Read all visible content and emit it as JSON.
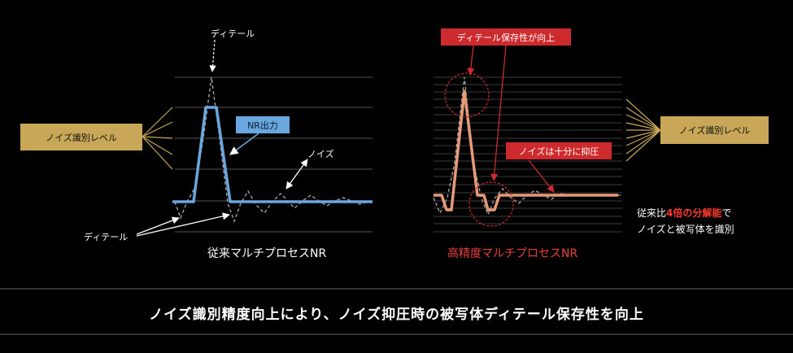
{
  "left": {
    "detail_top": "ディテール",
    "nr_output": "NR出力",
    "noise": "ノイズ",
    "detail_bottom": "ディテール",
    "noise_level": "ノイズ識別レベル",
    "title": "従来マルチプロセスNR"
  },
  "right": {
    "detail_preserve": "ディテール保存性が向上",
    "noise_suppressed": "ノイズは十分に抑圧",
    "noise_level": "ノイズ識別レベル",
    "title": "高精度マルチプロセスNR",
    "note_prefix": "従来比",
    "note_highlight": "4倍の分解能",
    "note_suffix": "で",
    "note_line2": "ノイズと被写体を識別"
  },
  "footer": "ノイズ識別精度向上により、ノイズ抑圧時の被写体ディテール保存性を向上",
  "colors": {
    "gold": "#c8a758",
    "blue": "#6aa7df",
    "red": "#cc2a2c",
    "salmon": "#e89a78"
  }
}
